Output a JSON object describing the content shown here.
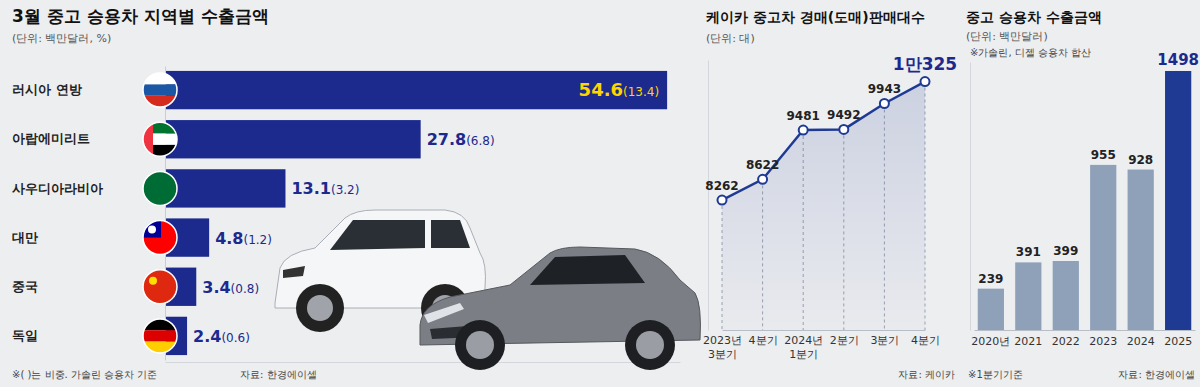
{
  "chart_data": [
    {
      "type": "bar",
      "orientation": "horizontal",
      "title": "3월 중고 승용차 지역별 수출금액",
      "subtitle": "(단위: 백만달러, %)",
      "categories": [
        "러시아 연방",
        "아랍에미리트",
        "사우디아라비아",
        "대만",
        "중국",
        "독일"
      ],
      "values": [
        54.6,
        27.8,
        13.1,
        4.8,
        3.4,
        2.4
      ],
      "share_labels": [
        "(13.4)",
        "(6.8)",
        "(3.2)",
        "(1.2)",
        "(0.8)",
        "(0.6)"
      ],
      "color": "#1b2a8c",
      "xlim": [
        0,
        56
      ],
      "data_labels": true,
      "tick_labels": "y",
      "notes": [
        "※( )는 비중. 가솔린 승용차 기준"
      ],
      "source": "자료: 한경에이셀"
    },
    {
      "type": "line",
      "title": "케이카 중고차 경매(도매)판매대수",
      "subtitle": "(단위: 대)",
      "categories": [
        "2023년 3분기",
        "4분기",
        "2024년 1분기",
        "2분기",
        "3분기",
        "4분기"
      ],
      "values": [
        8262,
        8622,
        9481,
        9492,
        9943,
        10325
      ],
      "value_labels": [
        "8262",
        "8622",
        "9481",
        "9492",
        "9943",
        "1만325"
      ],
      "color": "#1f3a93",
      "marker": "circle",
      "ylim": [
        6000,
        10700
      ],
      "grid": true,
      "data_labels": true,
      "tick_labels": "x",
      "source": "자료: 케이카"
    },
    {
      "type": "bar",
      "title": "중고 승용차 수출금액",
      "subtitle": "(단위: 백만달러)",
      "categories": [
        "2020년",
        "2021",
        "2022",
        "2023",
        "2024",
        "2025"
      ],
      "values": [
        239,
        391,
        399,
        955,
        928,
        1498
      ],
      "colors": [
        "#8ea1b8",
        "#8ea1b8",
        "#8ea1b8",
        "#8ea1b8",
        "#8ea1b8",
        "#1f3a93"
      ],
      "ylim": [
        0,
        1550
      ],
      "data_labels": true,
      "tick_labels": "x",
      "notes": [
        "※가솔린, 디젤 승용차 합산",
        "※1분기기준"
      ],
      "source": "자료: 한경에이셀"
    }
  ]
}
